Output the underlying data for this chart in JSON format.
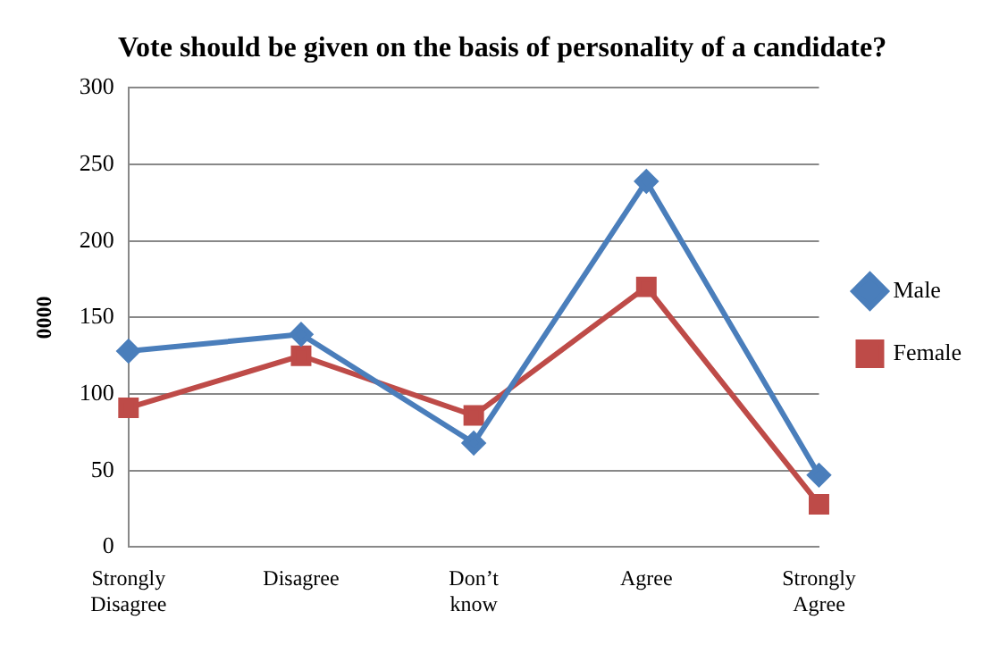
{
  "chart_data": {
    "type": "line",
    "title": "Vote should be given on the basis of personality of a candidate?",
    "ylabel": "0000",
    "categories": [
      "Strongly Disagree",
      "Disagree",
      "Don’t know",
      "Agree",
      "Strongly Agree"
    ],
    "series": [
      {
        "name": "Male",
        "color": "#4a7ebb",
        "marker": "diamond",
        "values": [
          128,
          139,
          68,
          239,
          47
        ]
      },
      {
        "name": "Female",
        "color": "#be4b48",
        "marker": "square",
        "values": [
          91,
          125,
          86,
          170,
          28
        ]
      }
    ],
    "ylim": [
      0,
      300
    ],
    "yticks": [
      0,
      50,
      100,
      150,
      200,
      250,
      300
    ],
    "grid": "y",
    "legend": "right",
    "line_style": "solid"
  }
}
